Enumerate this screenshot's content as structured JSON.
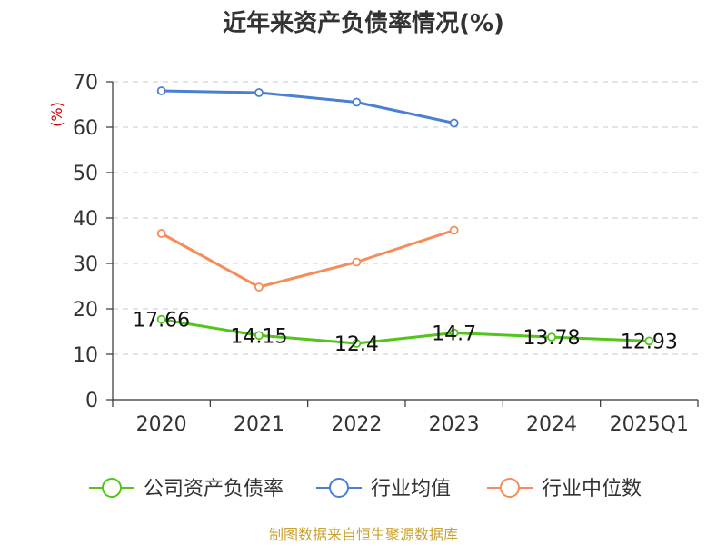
{
  "chart_data": {
    "type": "line",
    "title": "近年来资产负债率情况(%)",
    "ylabel": "(%)",
    "xlabel": "",
    "categories": [
      "2020",
      "2021",
      "2022",
      "2023",
      "2024",
      "2025Q1"
    ],
    "ylim": [
      0,
      70
    ],
    "yticks": [
      0,
      10,
      20,
      30,
      40,
      50,
      60,
      70
    ],
    "grid": true,
    "legend_position": "bottom",
    "series": [
      {
        "name": "公司资产负债率",
        "color": "#52c41a",
        "labeled": true,
        "values": [
          17.66,
          14.15,
          12.4,
          14.7,
          13.78,
          12.93
        ]
      },
      {
        "name": "行业均值",
        "color": "#4a7fd4",
        "labeled": false,
        "values": [
          68.0,
          67.6,
          65.5,
          60.9,
          null,
          null
        ]
      },
      {
        "name": "行业中位数",
        "color": "#f58d5a",
        "labeled": false,
        "values": [
          36.6,
          24.8,
          30.3,
          37.3,
          null,
          null
        ]
      }
    ],
    "data_labels": [
      "17.66",
      "14.15",
      "12.4",
      "14.7",
      "13.78",
      "12.93"
    ],
    "source": "制图数据来自恒生聚源数据库"
  }
}
